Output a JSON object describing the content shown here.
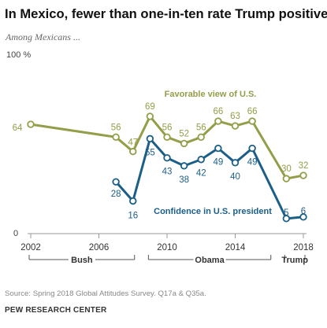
{
  "title": "In Mexico, fewer than one-in-ten rate Trump positively",
  "subtitle": "Among Mexicans ...",
  "source": "Source: Spring 2018 Global Attitudes Survey. Q17a & Q35a.",
  "organization": "PEW RESEARCH CENTER",
  "colors": {
    "favorable": "#949d48",
    "confidence": "#1b5e87",
    "axis": "#999999",
    "text_dark": "#222222"
  },
  "chart_data": {
    "type": "line",
    "y_axis_top_label": "100 %",
    "y_axis_zero_label": "0",
    "ylim": [
      0,
      100
    ],
    "xlim": [
      2002,
      2018
    ],
    "x_ticks": [
      2002,
      2006,
      2010,
      2014,
      2018
    ],
    "series": [
      {
        "name": "Favorable view of U.S.",
        "key": "favorable",
        "points": [
          {
            "x": 2002,
            "y": 64
          },
          {
            "x": 2007,
            "y": 56
          },
          {
            "x": 2008,
            "y": 47
          },
          {
            "x": 2009,
            "y": 69
          },
          {
            "x": 2010,
            "y": 56
          },
          {
            "x": 2011,
            "y": 52
          },
          {
            "x": 2012,
            "y": 56
          },
          {
            "x": 2013,
            "y": 66
          },
          {
            "x": 2014,
            "y": 63
          },
          {
            "x": 2015,
            "y": 66
          },
          {
            "x": 2017,
            "y": 30
          },
          {
            "x": 2018,
            "y": 32
          }
        ]
      },
      {
        "name": "Confidence in U.S. president",
        "key": "confidence",
        "points": [
          {
            "x": 2007,
            "y": 28
          },
          {
            "x": 2008,
            "y": 16
          },
          {
            "x": 2009,
            "y": 55
          },
          {
            "x": 2010,
            "y": 43
          },
          {
            "x": 2011,
            "y": 38
          },
          {
            "x": 2012,
            "y": 42
          },
          {
            "x": 2013,
            "y": 49
          },
          {
            "x": 2014,
            "y": 40
          },
          {
            "x": 2015,
            "y": 49
          },
          {
            "x": 2017,
            "y": 5
          },
          {
            "x": 2018,
            "y": 6
          }
        ]
      }
    ],
    "presidencies": [
      {
        "label": "Bush",
        "from": 2002,
        "to": 2008
      },
      {
        "label": "Obama",
        "from": 2009,
        "to": 2016
      },
      {
        "label": "Trump",
        "from": 2017,
        "to": 2018
      }
    ]
  }
}
